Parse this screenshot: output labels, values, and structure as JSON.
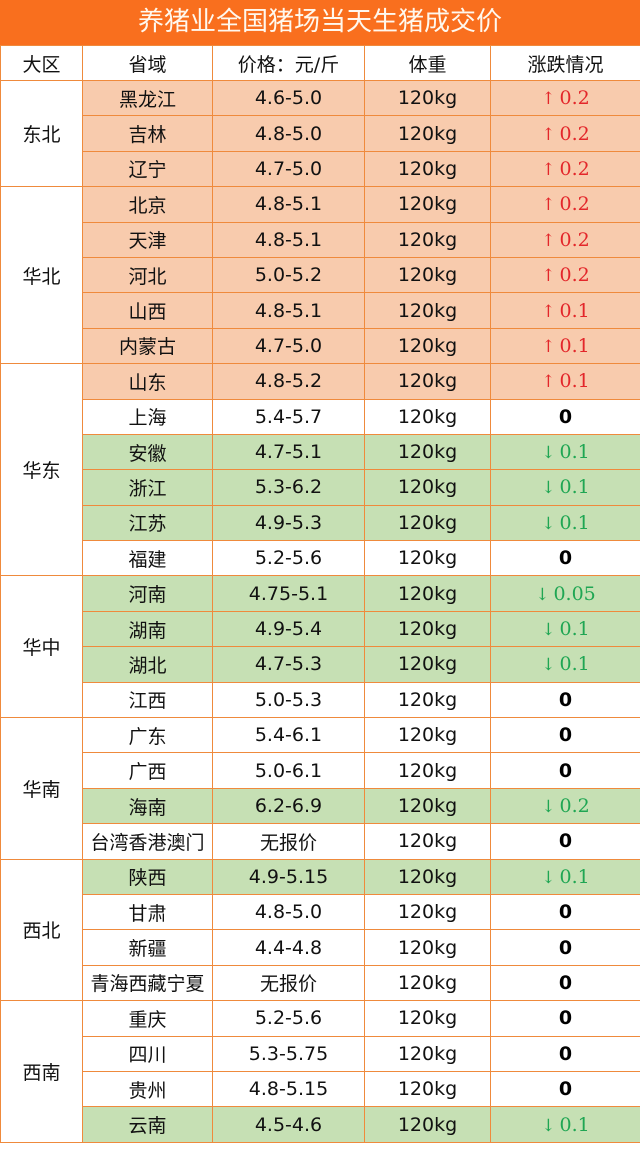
{
  "title": "养猪业全国猪场当天生猪成交价",
  "headers": [
    "大区",
    "省域",
    "价格：元/斤",
    "体重",
    "涨跌情况"
  ],
  "colors": {
    "title_bg": "#f96f1e",
    "rise_row": "#f8cbad",
    "fall_row": "#c6e0b4",
    "rise_text": "#e3262a",
    "fall_text": "#1fa653",
    "border": "#ef8a3c"
  },
  "icons": {
    "up": "arrow-up-icon",
    "down": "arrow-down-icon"
  },
  "regions": [
    {
      "name": "东北",
      "rows": [
        {
          "province": "黑龙江",
          "price": "4.6-5.0",
          "weight": "120kg",
          "dir": "up",
          "change": "0.2"
        },
        {
          "province": "吉林",
          "price": "4.8-5.0",
          "weight": "120kg",
          "dir": "up",
          "change": "0.2"
        },
        {
          "province": "辽宁",
          "price": "4.7-5.0",
          "weight": "120kg",
          "dir": "up",
          "change": "0.2"
        }
      ]
    },
    {
      "name": "华北",
      "rows": [
        {
          "province": "北京",
          "price": "4.8-5.1",
          "weight": "120kg",
          "dir": "up",
          "change": "0.2"
        },
        {
          "province": "天津",
          "price": "4.8-5.1",
          "weight": "120kg",
          "dir": "up",
          "change": "0.2"
        },
        {
          "province": "河北",
          "price": "5.0-5.2",
          "weight": "120kg",
          "dir": "up",
          "change": "0.2"
        },
        {
          "province": "山西",
          "price": "4.8-5.1",
          "weight": "120kg",
          "dir": "up",
          "change": "0.1"
        },
        {
          "province": "内蒙古",
          "price": "4.7-5.0",
          "weight": "120kg",
          "dir": "up",
          "change": "0.1"
        }
      ]
    },
    {
      "name": "华东",
      "rows": [
        {
          "province": "山东",
          "price": "4.8-5.2",
          "weight": "120kg",
          "dir": "up",
          "change": "0.1"
        },
        {
          "province": "上海",
          "price": "5.4-5.7",
          "weight": "120kg",
          "dir": "none",
          "change": "0"
        },
        {
          "province": "安徽",
          "price": "4.7-5.1",
          "weight": "120kg",
          "dir": "down",
          "change": "0.1"
        },
        {
          "province": "浙江",
          "price": "5.3-6.2",
          "weight": "120kg",
          "dir": "down",
          "change": "0.1"
        },
        {
          "province": "江苏",
          "price": "4.9-5.3",
          "weight": "120kg",
          "dir": "down",
          "change": "0.1"
        },
        {
          "province": "福建",
          "price": "5.2-5.6",
          "weight": "120kg",
          "dir": "none",
          "change": "0"
        }
      ]
    },
    {
      "name": "华中",
      "rows": [
        {
          "province": "河南",
          "price": "4.75-5.1",
          "weight": "120kg",
          "dir": "down",
          "change": "0.05"
        },
        {
          "province": "湖南",
          "price": "4.9-5.4",
          "weight": "120kg",
          "dir": "down",
          "change": "0.1"
        },
        {
          "province": "湖北",
          "price": "4.7-5.3",
          "weight": "120kg",
          "dir": "down",
          "change": "0.1"
        },
        {
          "province": "江西",
          "price": "5.0-5.3",
          "weight": "120kg",
          "dir": "none",
          "change": "0"
        }
      ]
    },
    {
      "name": "华南",
      "rows": [
        {
          "province": "广东",
          "price": "5.4-6.1",
          "weight": "120kg",
          "dir": "none",
          "change": "0"
        },
        {
          "province": "广西",
          "price": "5.0-6.1",
          "weight": "120kg",
          "dir": "none",
          "change": "0"
        },
        {
          "province": "海南",
          "price": "6.2-6.9",
          "weight": "120kg",
          "dir": "down",
          "change": "0.2"
        },
        {
          "province": "台湾香港澳门",
          "price": "无报价",
          "weight": "120kg",
          "dir": "none",
          "change": "0"
        }
      ]
    },
    {
      "name": "西北",
      "rows": [
        {
          "province": "陕西",
          "price": "4.9-5.15",
          "weight": "120kg",
          "dir": "down",
          "change": "0.1"
        },
        {
          "province": "甘肃",
          "price": "4.8-5.0",
          "weight": "120kg",
          "dir": "none",
          "change": "0"
        },
        {
          "province": "新疆",
          "price": "4.4-4.8",
          "weight": "120kg",
          "dir": "none",
          "change": "0"
        },
        {
          "province": "青海西藏宁夏",
          "price": "无报价",
          "weight": "120kg",
          "dir": "none",
          "change": "0"
        }
      ]
    },
    {
      "name": "西南",
      "rows": [
        {
          "province": "重庆",
          "price": "5.2-5.6",
          "weight": "120kg",
          "dir": "none",
          "change": "0"
        },
        {
          "province": "四川",
          "price": "5.3-5.75",
          "weight": "120kg",
          "dir": "none",
          "change": "0"
        },
        {
          "province": "贵州",
          "price": "4.8-5.15",
          "weight": "120kg",
          "dir": "none",
          "change": "0"
        },
        {
          "province": "云南",
          "price": "4.5-4.6",
          "weight": "120kg",
          "dir": "down",
          "change": "0.1"
        }
      ]
    }
  ]
}
